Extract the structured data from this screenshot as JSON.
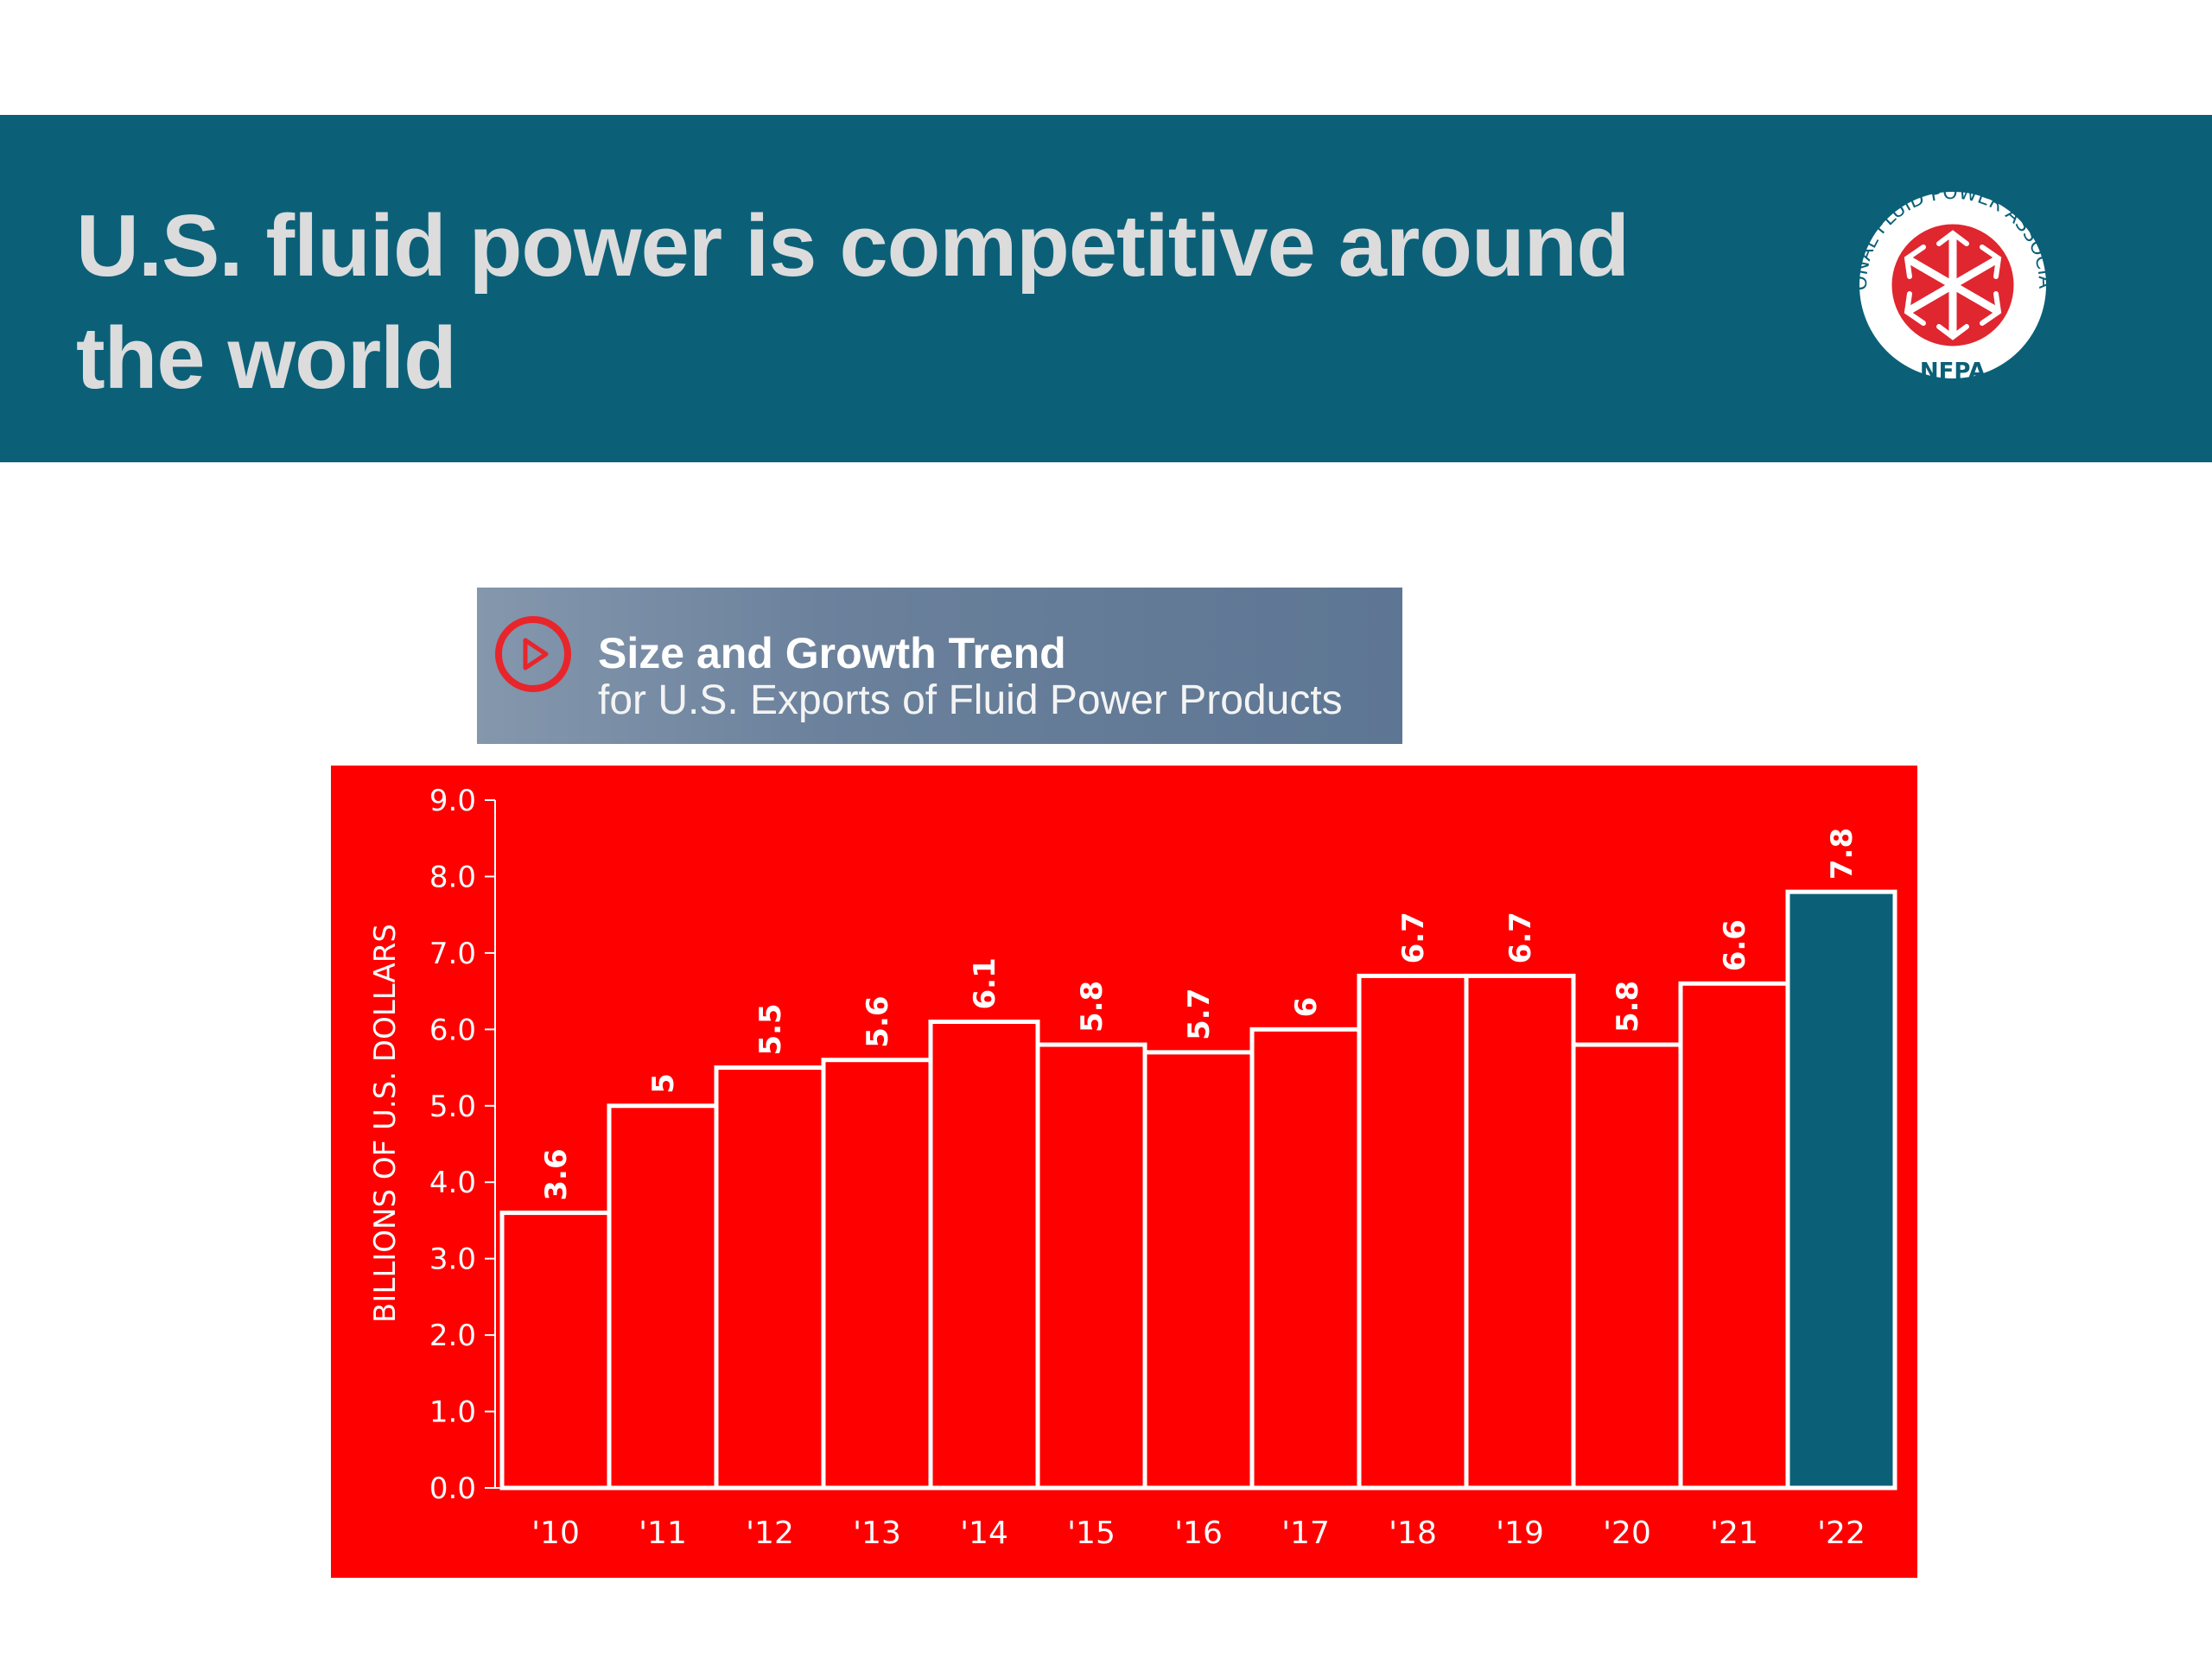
{
  "header": {
    "title": "U.S. fluid power is competitive around the world",
    "background_color": "#0b6078"
  },
  "logo": {
    "ring_text": "NATIONAL FLUID POWER ASSOCIATION",
    "abbr": "NFPA",
    "icon": "nfpa-emblem-icon"
  },
  "subtitle": {
    "main": "Size and Growth Trend",
    "secondary": "for U.S. Exports of Fluid Power Products",
    "icon": "play-circle-icon"
  },
  "chart_data": {
    "type": "bar",
    "categories": [
      "'10",
      "'11",
      "'12",
      "'13",
      "'14",
      "'15",
      "'16",
      "'17",
      "'18",
      "'19",
      "'20",
      "'21",
      "'22"
    ],
    "values": [
      3.6,
      5,
      5.5,
      5.6,
      6.1,
      5.8,
      5.7,
      6,
      6.7,
      6.7,
      5.8,
      6.6,
      7.8
    ],
    "value_labels": [
      "3.6",
      "5",
      "5.5",
      "5.6",
      "6.1",
      "5.8",
      "5.7",
      "6",
      "6.7",
      "6.7",
      "5.8",
      "6.6",
      "7.8"
    ],
    "title": "",
    "xlabel": "",
    "ylabel": "BILLIONS OF U.S. DOLLARS",
    "ylim": [
      0,
      9
    ],
    "yticks": [
      "0.0",
      "1.0",
      "2.0",
      "3.0",
      "4.0",
      "5.0",
      "6.0",
      "7.0",
      "8.0",
      "9.0"
    ],
    "grid": false,
    "colors": {
      "background": "#fe0000",
      "bar": "#fe0000",
      "highlight_bar": "#0b6078",
      "outline": "#ffffff"
    },
    "highlight_category": "'22"
  }
}
